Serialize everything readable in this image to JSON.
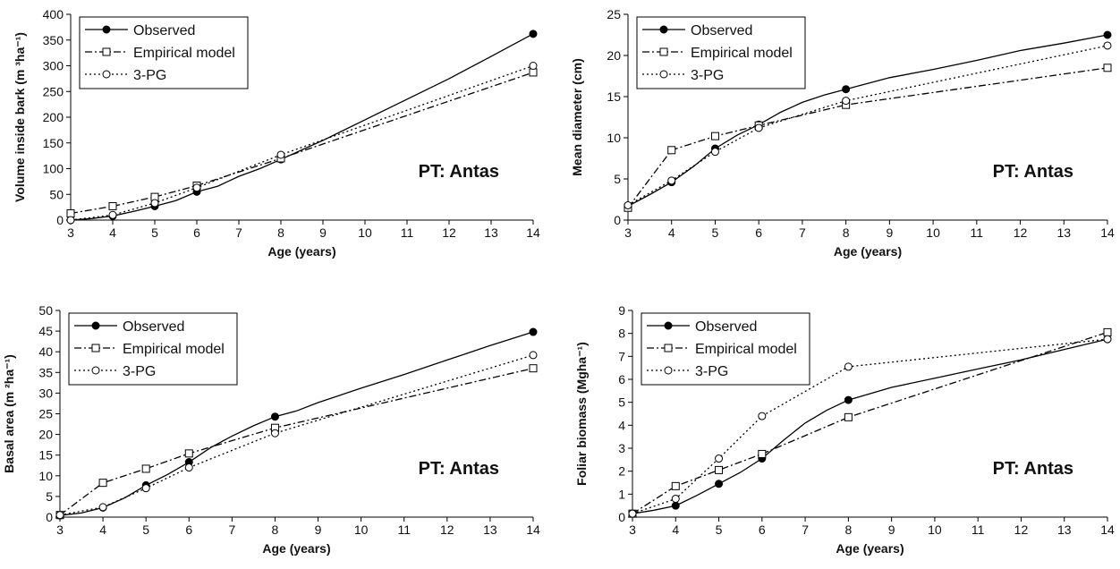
{
  "chart_data": [
    {
      "type": "line",
      "panel_label": "PT: Antas",
      "xlabel": "Age (years)",
      "ylabel": "Volume inside bark (m ³ha⁻¹)",
      "xlim": [
        3,
        14
      ],
      "ylim": [
        0,
        400
      ],
      "xticks": [
        3,
        4,
        5,
        6,
        7,
        8,
        9,
        10,
        11,
        12,
        13,
        14
      ],
      "yticks": [
        0,
        50,
        100,
        150,
        200,
        250,
        300,
        350,
        400
      ],
      "legend_position": "top-left",
      "series": [
        {
          "name": "Observed",
          "style": "solid",
          "marker": "filled-circle",
          "x": [
            3,
            4,
            5,
            6,
            8,
            14
          ],
          "y": [
            0,
            8,
            27,
            55,
            118,
            362
          ],
          "curve_x": [
            3,
            3.5,
            4,
            4.5,
            5,
            5.5,
            6,
            6.5,
            7,
            7.5,
            8,
            9,
            10,
            11,
            12,
            13,
            14
          ],
          "curve_y": [
            0,
            3,
            8,
            17,
            27,
            38,
            55,
            66,
            85,
            100,
            118,
            155,
            195,
            235,
            275,
            318,
            362
          ]
        },
        {
          "name": "Empirical model",
          "style": "dash-dot",
          "marker": "open-square",
          "x": [
            3,
            4,
            5,
            6,
            8,
            14
          ],
          "y": [
            13,
            27,
            45,
            67,
            120,
            287
          ]
        },
        {
          "name": "3-PG",
          "style": "dotted",
          "marker": "open-circle",
          "x": [
            3,
            4,
            5,
            6,
            8,
            14
          ],
          "y": [
            0,
            10,
            33,
            63,
            127,
            300
          ]
        }
      ]
    },
    {
      "type": "line",
      "panel_label": "PT: Antas",
      "xlabel": "Age (years)",
      "ylabel": "Mean diameter (cm)",
      "xlim": [
        3,
        14
      ],
      "ylim": [
        0,
        25
      ],
      "xticks": [
        3,
        4,
        5,
        6,
        7,
        8,
        9,
        10,
        11,
        12,
        13,
        14
      ],
      "yticks": [
        0,
        5,
        10,
        15,
        20,
        25
      ],
      "legend_position": "top-left",
      "series": [
        {
          "name": "Observed",
          "style": "solid",
          "marker": "filled-circle",
          "x": [
            3,
            4,
            5,
            6,
            8,
            14
          ],
          "y": [
            1.7,
            4.6,
            8.7,
            11.6,
            15.9,
            22.5
          ],
          "curve_x": [
            3,
            3.5,
            4,
            4.5,
            5,
            5.5,
            6,
            6.5,
            7,
            7.5,
            8,
            9,
            10,
            11,
            12,
            13,
            14
          ],
          "curve_y": [
            1.7,
            3.1,
            4.6,
            6.5,
            8.7,
            10.3,
            11.6,
            13.1,
            14.3,
            15.2,
            15.9,
            17.3,
            18.3,
            19.4,
            20.6,
            21.5,
            22.5
          ]
        },
        {
          "name": "Empirical model",
          "style": "dash-dot",
          "marker": "open-square",
          "x": [
            3,
            4,
            5,
            6,
            8,
            14
          ],
          "y": [
            1.5,
            8.5,
            10.2,
            11.5,
            14.0,
            18.5
          ]
        },
        {
          "name": "3-PG",
          "style": "dotted",
          "marker": "open-circle",
          "x": [
            3,
            4,
            5,
            6,
            8,
            14
          ],
          "y": [
            1.8,
            4.8,
            8.3,
            11.2,
            14.5,
            21.2
          ]
        }
      ]
    },
    {
      "type": "line",
      "panel_label": "PT: Antas",
      "xlabel": "Age (years)",
      "ylabel": "Basal area (m ²ha⁻¹)",
      "xlim": [
        3,
        14
      ],
      "ylim": [
        0,
        50
      ],
      "xticks": [
        3,
        4,
        5,
        6,
        7,
        8,
        9,
        10,
        11,
        12,
        13,
        14
      ],
      "yticks": [
        0,
        5,
        10,
        15,
        20,
        25,
        30,
        35,
        40,
        45,
        50
      ],
      "legend_position": "top-left",
      "series": [
        {
          "name": "Observed",
          "style": "solid",
          "marker": "filled-circle",
          "x": [
            3,
            4,
            5,
            6,
            8,
            14
          ],
          "y": [
            0.4,
            2.3,
            7.7,
            13.3,
            24.3,
            44.8
          ],
          "curve_x": [
            3,
            3.5,
            4,
            4.5,
            5,
            5.5,
            6,
            6.5,
            7,
            7.5,
            8,
            8.5,
            9,
            10,
            11,
            12,
            13,
            14
          ],
          "curve_y": [
            0.4,
            1.0,
            2.3,
            4.6,
            7.7,
            10.3,
            13.3,
            16.8,
            19.6,
            22.1,
            24.3,
            25.7,
            27.7,
            31.2,
            34.5,
            38.0,
            41.5,
            44.8
          ]
        },
        {
          "name": "Empirical model",
          "style": "dash-dot",
          "marker": "open-square",
          "x": [
            3,
            4,
            5,
            6,
            8,
            14
          ],
          "y": [
            0.5,
            8.3,
            11.7,
            15.4,
            21.6,
            36.0
          ]
        },
        {
          "name": "3-PG",
          "style": "dotted",
          "marker": "open-circle",
          "x": [
            3,
            4,
            5,
            6,
            8,
            14
          ],
          "y": [
            0.5,
            2.4,
            7.0,
            12.0,
            20.3,
            39.2
          ]
        }
      ]
    },
    {
      "type": "line",
      "panel_label": "PT: Antas",
      "xlabel": "Age (years)",
      "ylabel": "Foliar biomass (Mgha⁻¹)",
      "xlim": [
        3,
        14
      ],
      "ylim": [
        0,
        9
      ],
      "xticks": [
        3,
        4,
        5,
        6,
        7,
        8,
        9,
        10,
        11,
        12,
        13,
        14
      ],
      "yticks": [
        0,
        1,
        2,
        3,
        4,
        5,
        6,
        7,
        8,
        9
      ],
      "legend_position": "top-left",
      "series": [
        {
          "name": "Observed",
          "style": "solid",
          "marker": "filled-circle",
          "x": [
            3,
            4,
            5,
            6,
            8,
            14
          ],
          "y": [
            0.15,
            0.5,
            1.45,
            2.55,
            5.1,
            7.75
          ],
          "curve_x": [
            3,
            3.5,
            4,
            4.5,
            5,
            5.5,
            6,
            6.5,
            7,
            7.5,
            8,
            9,
            10,
            11,
            12,
            13,
            14
          ],
          "curve_y": [
            0.15,
            0.3,
            0.5,
            0.95,
            1.45,
            1.95,
            2.55,
            3.35,
            4.1,
            4.65,
            5.1,
            5.65,
            6.05,
            6.45,
            6.85,
            7.3,
            7.75
          ]
        },
        {
          "name": "Empirical model",
          "style": "dash-dot",
          "marker": "open-square",
          "x": [
            3,
            4,
            5,
            6,
            8,
            14
          ],
          "y": [
            0.15,
            1.35,
            2.05,
            2.75,
            4.35,
            8.05
          ]
        },
        {
          "name": "3-PG",
          "style": "dotted",
          "marker": "open-circle",
          "x": [
            3,
            4,
            5,
            6,
            8,
            14
          ],
          "y": [
            0.15,
            0.8,
            2.55,
            4.4,
            6.55,
            7.75
          ]
        }
      ]
    }
  ]
}
